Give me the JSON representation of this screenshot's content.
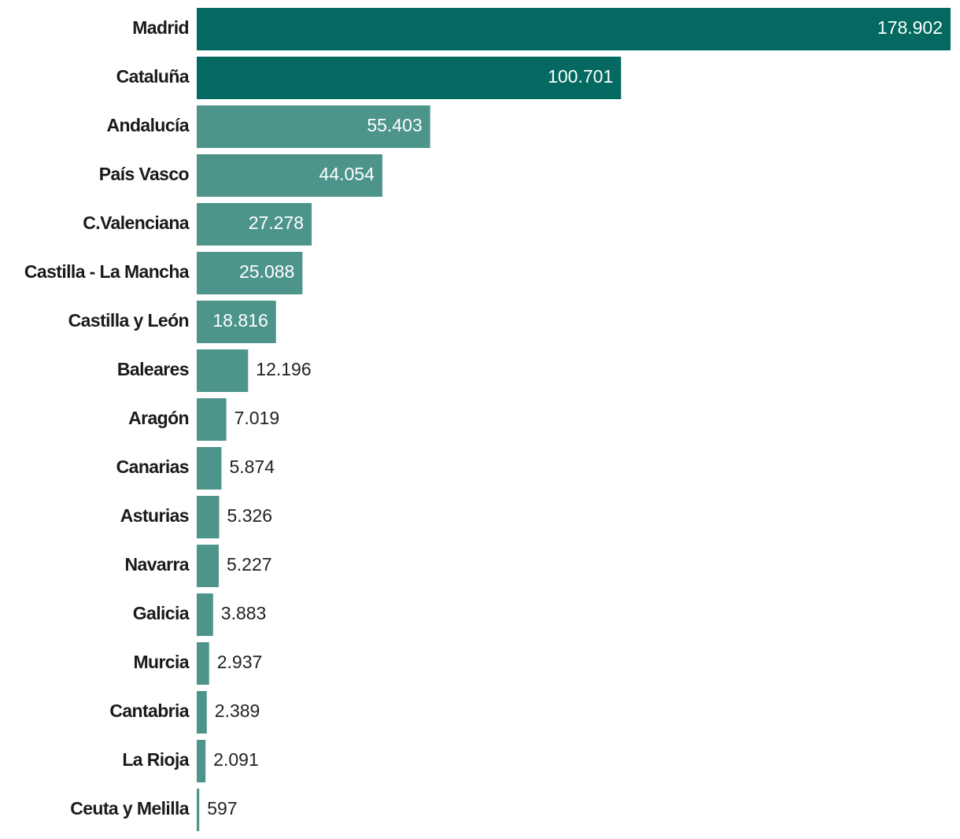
{
  "chart_data": {
    "type": "bar",
    "orientation": "horizontal",
    "categories": [
      "Madrid",
      "Cataluña",
      "Andalucía",
      "País Vasco",
      "C.Valenciana",
      "Castilla - La Mancha",
      "Castilla y León",
      "Baleares",
      "Aragón",
      "Canarias",
      "Asturias",
      "Navarra",
      "Galicia",
      "Murcia",
      "Cantabria",
      "La Rioja",
      "Ceuta y Melilla"
    ],
    "values": [
      178902,
      100701,
      55403,
      44054,
      27278,
      25088,
      18816,
      12196,
      7019,
      5874,
      5326,
      5227,
      3883,
      2937,
      2389,
      2091,
      597
    ],
    "value_labels": [
      "178.902",
      "100.701",
      "55.403",
      "44.054",
      "27.278",
      "25.088",
      "18.816",
      "12.196",
      "7.019",
      "5.874",
      "5.326",
      "5.227",
      "3.883",
      "2.937",
      "2.389",
      "2.091",
      "597"
    ],
    "highlighted": [
      true,
      true,
      false,
      false,
      false,
      false,
      false,
      false,
      false,
      false,
      false,
      false,
      false,
      false,
      false,
      false,
      false
    ],
    "xlim": [
      0,
      178902
    ],
    "grid": false,
    "legend": "none",
    "colors": {
      "highlight": "#046960",
      "bar": "#4d948b",
      "label_inside": "#ffffff",
      "label_outside": "#222222",
      "category_text": "#1a1a1a"
    }
  }
}
